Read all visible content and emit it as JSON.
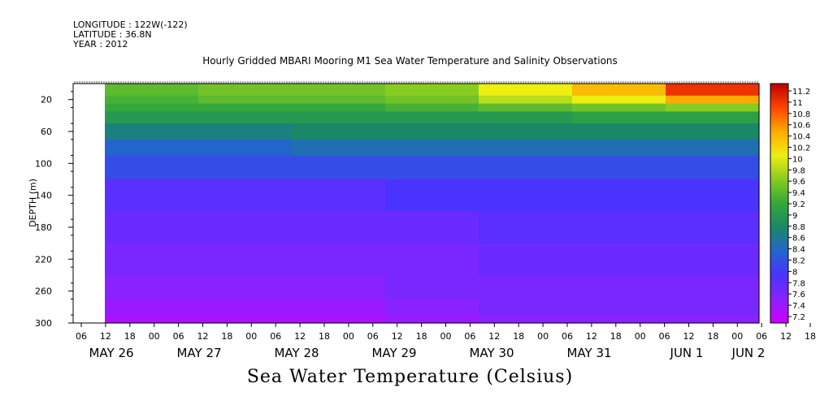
{
  "header": {
    "longitude": "LONGITUDE : 122W(-122)",
    "latitude": "LATITUDE : 36.8N",
    "year": "YEAR : 2012",
    "title": "Hourly Gridded MBARI Mooring M1 Sea Water Temperature and Salinity Observations"
  },
  "chart_data": {
    "type": "heatmap",
    "title": "Hourly Gridded MBARI Mooring M1 Sea Water Temperature and Salinity Observations",
    "xlabel": "Sea Water Temperature (Celsius)",
    "ylabel": "DEPTH (m)",
    "ylim": [
      300,
      0
    ],
    "y_ticks": [
      20,
      60,
      100,
      140,
      180,
      220,
      260,
      300
    ],
    "x_hour_ticks": [
      "06",
      "12",
      "18",
      "00",
      "06",
      "12",
      "18",
      "00",
      "06",
      "12",
      "18",
      "00",
      "06",
      "12",
      "18",
      "00",
      "06",
      "12",
      "18",
      "00",
      "06",
      "12",
      "18",
      "00",
      "06",
      "12",
      "18",
      "00",
      "06",
      "12",
      "18",
      "00"
    ],
    "x_day_labels": [
      "MAY 26",
      "MAY 27",
      "MAY 28",
      "MAY 29",
      "MAY 30",
      "MAY 31",
      "JUN  1",
      "JUN  2"
    ],
    "colorbar_ticks": [
      "11.2",
      "11",
      "10.8",
      "10.6",
      "10.4",
      "10.2",
      "10",
      "9.8",
      "9.6",
      "9.4",
      "9.2",
      "9",
      "8.8",
      "8.6",
      "8.4",
      "8.2",
      "8",
      "7.8",
      "7.6",
      "7.4",
      "7.2"
    ],
    "color_range": [
      7.2,
      11.2
    ],
    "depths": [
      10,
      20,
      30,
      40,
      60,
      80,
      100,
      140,
      180,
      220,
      260,
      280,
      300
    ],
    "days": [
      {
        "label": "MAY 26",
        "profile": [
          9.4,
          9.3,
          9.2,
          9.0,
          8.7,
          8.4,
          8.2,
          7.9,
          7.8,
          7.7,
          7.6,
          7.5,
          7.4
        ]
      },
      {
        "label": "MAY 27",
        "profile": [
          9.5,
          9.4,
          9.2,
          9.0,
          8.7,
          8.4,
          8.2,
          7.9,
          7.8,
          7.7,
          7.6,
          7.5,
          7.4
        ]
      },
      {
        "label": "MAY 28",
        "profile": [
          9.5,
          9.4,
          9.2,
          9.0,
          8.8,
          8.5,
          8.2,
          7.9,
          7.8,
          7.7,
          7.6,
          7.5,
          7.4
        ]
      },
      {
        "label": "MAY 29",
        "profile": [
          9.6,
          9.5,
          9.3,
          9.0,
          8.8,
          8.5,
          8.2,
          8.0,
          7.8,
          7.7,
          7.7,
          7.6,
          7.5
        ]
      },
      {
        "label": "MAY 30",
        "profile": [
          10.0,
          9.8,
          9.4,
          9.0,
          8.8,
          8.5,
          8.2,
          8.0,
          7.9,
          7.8,
          7.7,
          7.7,
          7.6
        ]
      },
      {
        "label": "MAY 31",
        "profile": [
          10.3,
          10.0,
          9.5,
          9.1,
          8.8,
          8.5,
          8.2,
          8.0,
          7.9,
          7.8,
          7.7,
          7.7,
          7.6
        ]
      },
      {
        "label": "JUN 1",
        "profile": [
          10.9,
          10.4,
          9.6,
          9.1,
          8.8,
          8.5,
          8.2,
          8.0,
          7.9,
          7.8,
          7.7,
          7.7,
          7.6
        ]
      }
    ]
  }
}
